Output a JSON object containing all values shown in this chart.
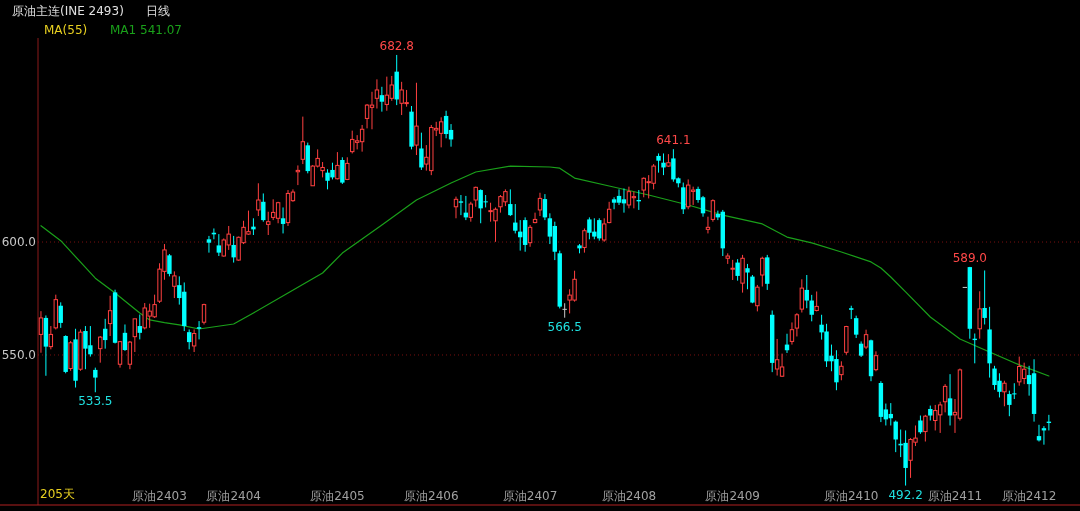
{
  "chart_data": {
    "type": "candlestick",
    "title": "原油主连(INE 2493)",
    "subtitle": "日线",
    "legend_title": "MA(55)",
    "legend": "top left",
    "grid": "y",
    "ylim": [
      483.6,
      690.3
    ],
    "categories": [
      null,
      null,
      null,
      null,
      null,
      null,
      null,
      null,
      null,
      null,
      null,
      null,
      null,
      null,
      null,
      null,
      null,
      null,
      null,
      null,
      null,
      null,
      null,
      null,
      "原油2403",
      null,
      null,
      null,
      null,
      null,
      null,
      null,
      null,
      null,
      null,
      null,
      null,
      null,
      null,
      "原油2404",
      null,
      null,
      null,
      null,
      null,
      null,
      null,
      null,
      null,
      null,
      null,
      null,
      null,
      null,
      null,
      null,
      null,
      null,
      null,
      null,
      "原油2405",
      null,
      null,
      null,
      null,
      null,
      null,
      null,
      null,
      null,
      null,
      null,
      null,
      null,
      null,
      null,
      null,
      null,
      null,
      "原油2406",
      null,
      null,
      null,
      null,
      null,
      null,
      null,
      null,
      null,
      null,
      null,
      null,
      null,
      null,
      null,
      null,
      null,
      null,
      null,
      "原油2407",
      null,
      null,
      null,
      null,
      null,
      null,
      null,
      null,
      null,
      null,
      null,
      null,
      null,
      null,
      null,
      null,
      null,
      null,
      null,
      "原油2408",
      null,
      null,
      null,
      null,
      null,
      null,
      null,
      null,
      null,
      null,
      null,
      null,
      null,
      null,
      null,
      null,
      null,
      null,
      null,
      null,
      "原油2409",
      null,
      null,
      null,
      null,
      null,
      null,
      null,
      null,
      null,
      null,
      null,
      null,
      null,
      null,
      null,
      null,
      null,
      null,
      null,
      null,
      null,
      null,
      null,
      "原油2410",
      null,
      null,
      null,
      null,
      null,
      null,
      null,
      null,
      null,
      null,
      null,
      null,
      null,
      null,
      null,
      null,
      null,
      null,
      null,
      null,
      "原油2411",
      null,
      null,
      null,
      null,
      null,
      null,
      null,
      null,
      null,
      null,
      null,
      null,
      null,
      null,
      "原油2412",
      null,
      null,
      null,
      null
    ],
    "yticks": [
      {
        "value": 550,
        "label": "550.0"
      },
      {
        "value": 600,
        "label": "600.0"
      }
    ],
    "annotations": [
      "205天",
      {
        "text": "533.5",
        "y": 533.5
      },
      {
        "text": "682.8",
        "y": 682.8
      },
      {
        "text": "566.5",
        "y": 566.5
      },
      {
        "text": "641.1",
        "y": 641.1
      },
      {
        "text": "492.2",
        "y": 492.2
      },
      {
        "text": "589.0",
        "y": 589.0
      }
    ],
    "ohlc": [
      [
        559.1,
        569.4,
        551.0,
        566.4
      ],
      [
        566.4,
        567.5,
        540.8,
        553.7
      ],
      [
        553.7,
        562.8,
        552.5,
        559.1
      ],
      [
        562.0,
        576.7,
        561.3,
        574.5
      ],
      [
        571.8,
        573.3,
        562.0,
        564.2
      ],
      [
        558.4,
        558.7,
        541.9,
        542.5
      ],
      [
        544.0,
        556.2,
        543.0,
        555.4
      ],
      [
        556.9,
        561.6,
        535.6,
        538.6
      ],
      [
        543.7,
        561.3,
        543.0,
        560.1
      ],
      [
        560.6,
        562.8,
        543.7,
        552.8
      ],
      [
        554.3,
        562.8,
        549.3,
        550.3
      ],
      [
        543.4,
        544.4,
        533.5,
        540.0
      ],
      [
        552.8,
        558.4,
        546.6,
        557.9
      ],
      [
        561.6,
        566.0,
        552.8,
        556.6
      ],
      [
        563.9,
        576.2,
        558.4,
        569.6
      ],
      [
        577.7,
        578.9,
        555.1,
        555.4
      ],
      [
        545.9,
        556.2,
        544.4,
        555.9
      ],
      [
        559.8,
        563.5,
        551.8,
        552.2
      ],
      [
        545.9,
        556.2,
        543.7,
        555.7
      ],
      [
        558.1,
        566.0,
        551.3,
        566.0
      ],
      [
        562.8,
        567.9,
        556.9,
        559.8
      ],
      [
        562.0,
        573.0,
        561.3,
        570.8
      ],
      [
        567.2,
        572.7,
        562.0,
        569.4
      ],
      [
        566.9,
        576.7,
        566.4,
        572.3
      ],
      [
        573.8,
        590.6,
        573.0,
        588.0
      ],
      [
        587.0,
        599.1,
        583.3,
        596.5
      ],
      [
        594.1,
        594.7,
        584.8,
        585.9
      ],
      [
        580.4,
        587.0,
        575.2,
        585.0
      ],
      [
        580.9,
        584.8,
        572.3,
        575.2
      ],
      [
        578.0,
        582.1,
        560.6,
        562.8
      ],
      [
        560.1,
        561.3,
        552.5,
        555.7
      ],
      [
        554.0,
        561.3,
        551.3,
        559.5
      ],
      [
        562.3,
        565.0,
        556.9,
        561.6
      ],
      [
        564.5,
        572.7,
        563.5,
        572.3
      ],
      [
        601.2,
        602.7,
        595.3,
        599.7
      ],
      [
        604.1,
        606.0,
        601.2,
        603.4
      ],
      [
        598.5,
        603.5,
        593.8,
        595.3
      ],
      [
        593.8,
        601.6,
        593.5,
        600.9
      ],
      [
        598.7,
        607.1,
        596.5,
        603.5
      ],
      [
        598.7,
        602.7,
        590.9,
        593.2
      ],
      [
        592.0,
        602.4,
        591.7,
        602.1
      ],
      [
        599.7,
        609.4,
        599.1,
        606.5
      ],
      [
        603.5,
        613.9,
        603.2,
        604.6
      ],
      [
        606.8,
        610.5,
        603.1,
        605.6
      ],
      [
        614.2,
        626.0,
        611.5,
        618.6
      ],
      [
        617.8,
        621.5,
        609.0,
        609.7
      ],
      [
        607.8,
        613.4,
        603.1,
        609.0
      ],
      [
        610.9,
        618.9,
        609.7,
        613.1
      ],
      [
        610.5,
        617.8,
        608.3,
        617.4
      ],
      [
        610.5,
        615.3,
        603.8,
        608.0
      ],
      [
        608.6,
        623.0,
        607.1,
        621.5
      ],
      [
        618.3,
        623.3,
        617.8,
        622.1
      ],
      [
        631.1,
        633.9,
        625.2,
        631.7
      ],
      [
        636.6,
        655.5,
        634.5,
        644.4
      ],
      [
        642.8,
        644.0,
        630.4,
        631.4
      ],
      [
        624.9,
        634.1,
        624.8,
        633.6
      ],
      [
        633.6,
        641.0,
        633.0,
        637.0
      ],
      [
        631.6,
        635.4,
        628.6,
        633.0
      ],
      [
        630.7,
        632.2,
        623.3,
        627.1
      ],
      [
        631.9,
        635.1,
        627.7,
        628.6
      ],
      [
        628.0,
        639.8,
        627.7,
        633.9
      ],
      [
        636.3,
        637.5,
        625.7,
        626.3
      ],
      [
        627.7,
        637.5,
        627.4,
        634.8
      ],
      [
        640.0,
        649.3,
        639.2,
        645.4
      ],
      [
        644.1,
        647.3,
        641.0,
        644.8
      ],
      [
        644.4,
        651.8,
        640.0,
        649.9
      ],
      [
        654.7,
        661.1,
        650.3,
        660.6
      ],
      [
        659.6,
        666.5,
        649.9,
        660.6
      ],
      [
        663.6,
        672.0,
        659.1,
        667.3
      ],
      [
        665.0,
        668.7,
        657.7,
        662.1
      ],
      [
        660.9,
        673.2,
        658.1,
        665.0
      ],
      [
        663.6,
        673.5,
        662.5,
        669.5
      ],
      [
        675.4,
        682.8,
        660.6,
        663.1
      ],
      [
        661.4,
        670.9,
        656.2,
        667.3
      ],
      [
        661.4,
        667.3,
        659.9,
        661.7
      ],
      [
        657.7,
        660.2,
        641.0,
        642.2
      ],
      [
        642.9,
        670.5,
        638.5,
        651.3
      ],
      [
        641.4,
        648.4,
        631.9,
        633.0
      ],
      [
        634.5,
        642.9,
        631.6,
        637.5
      ],
      [
        631.6,
        651.8,
        629.6,
        650.7
      ],
      [
        649.6,
        653.2,
        646.9,
        650.3
      ],
      [
        648.1,
        655.2,
        641.9,
        653.2
      ],
      [
        655.8,
        658.1,
        645.9,
        647.8
      ],
      [
        649.6,
        652.2,
        642.2,
        645.4
      ],
      [
        615.6,
        620.1,
        610.5,
        618.9
      ],
      [
        618.0,
        620.8,
        611.9,
        617.4
      ],
      [
        613.0,
        620.4,
        609.7,
        610.9
      ],
      [
        610.9,
        617.8,
        609.0,
        616.8
      ],
      [
        618.6,
        624.5,
        615.6,
        624.2
      ],
      [
        623.0,
        623.3,
        608.3,
        614.9
      ],
      [
        618.0,
        620.8,
        615.3,
        617.6
      ],
      [
        613.6,
        617.4,
        609.0,
        613.9
      ],
      [
        609.4,
        615.3,
        600.1,
        614.5
      ],
      [
        615.6,
        620.8,
        613.0,
        620.1
      ],
      [
        617.8,
        623.3,
        615.9,
        622.3
      ],
      [
        616.8,
        623.3,
        611.5,
        611.9
      ],
      [
        608.6,
        616.8,
        603.8,
        605.0
      ],
      [
        604.6,
        609.7,
        596.2,
        602.1
      ],
      [
        609.7,
        610.9,
        595.7,
        598.7
      ],
      [
        599.7,
        607.5,
        597.9,
        606.5
      ],
      [
        608.6,
        613.0,
        608.3,
        610.0
      ],
      [
        614.2,
        621.8,
        611.5,
        619.3
      ],
      [
        619.0,
        621.2,
        609.7,
        610.9
      ],
      [
        610.5,
        612.7,
        599.1,
        602.4
      ],
      [
        607.1,
        609.0,
        592.0,
        595.7
      ],
      [
        595.0,
        596.2,
        570.6,
        571.4
      ],
      [
        570.2,
        572.9,
        566.5,
        570.2
      ],
      [
        574.3,
        579.1,
        568.4,
        576.5
      ],
      [
        574.3,
        587.3,
        573.6,
        583.5
      ],
      [
        598.5,
        599.1,
        595.0,
        597.2
      ],
      [
        597.6,
        606.0,
        595.3,
        605.0
      ],
      [
        610.0,
        610.9,
        601.2,
        604.1
      ],
      [
        604.6,
        610.5,
        601.2,
        602.4
      ],
      [
        609.7,
        610.5,
        600.6,
        601.6
      ],
      [
        600.9,
        610.5,
        600.1,
        608.0
      ],
      [
        608.6,
        617.8,
        608.3,
        614.5
      ],
      [
        618.9,
        619.8,
        614.5,
        617.4
      ],
      [
        620.4,
        623.3,
        616.4,
        617.4
      ],
      [
        618.9,
        623.7,
        613.0,
        617.1
      ],
      [
        616.4,
        624.5,
        614.9,
        622.3
      ],
      [
        619.6,
        622.3,
        614.9,
        620.1
      ],
      [
        618.6,
        623.0,
        614.2,
        618.0
      ],
      [
        623.0,
        628.6,
        619.8,
        628.2
      ],
      [
        626.3,
        629.6,
        619.3,
        626.7
      ],
      [
        626.0,
        634.5,
        623.3,
        633.6
      ],
      [
        638.1,
        639.2,
        630.7,
        636.0
      ],
      [
        635.1,
        639.2,
        629.6,
        633.0
      ],
      [
        633.6,
        638.9,
        633.3,
        635.1
      ],
      [
        637.0,
        641.1,
        626.7,
        627.7
      ],
      [
        628.2,
        628.6,
        624.2,
        626.0
      ],
      [
        624.2,
        626.3,
        612.4,
        614.5
      ],
      [
        615.6,
        627.7,
        614.5,
        625.2
      ],
      [
        622.4,
        624.5,
        616.4,
        623.0
      ],
      [
        623.5,
        624.5,
        617.4,
        618.6
      ],
      [
        619.8,
        620.4,
        611.2,
        612.7
      ],
      [
        605.6,
        611.2,
        603.8,
        606.5
      ],
      [
        610.0,
        618.9,
        609.0,
        618.3
      ],
      [
        612.4,
        613.9,
        609.7,
        610.9
      ],
      [
        613.4,
        614.2,
        593.8,
        597.2
      ],
      [
        592.8,
        595.0,
        590.3,
        593.8
      ],
      [
        588.1,
        592.1,
        583.2,
        588.4
      ],
      [
        590.9,
        592.4,
        582.9,
        585.0
      ],
      [
        581.8,
        594.3,
        577.6,
        592.8
      ],
      [
        588.4,
        590.3,
        579.1,
        586.5
      ],
      [
        584.7,
        585.4,
        572.9,
        573.2
      ],
      [
        571.8,
        581.0,
        569.3,
        580.0
      ],
      [
        585.4,
        593.5,
        580.3,
        592.8
      ],
      [
        593.2,
        594.3,
        578.8,
        581.5
      ],
      [
        567.8,
        569.7,
        542.4,
        546.5
      ],
      [
        543.8,
        557.1,
        540.9,
        547.9
      ],
      [
        540.6,
        550.6,
        540.3,
        544.7
      ],
      [
        554.6,
        559.4,
        550.9,
        552.1
      ],
      [
        556.0,
        564.4,
        554.6,
        561.2
      ],
      [
        561.9,
        568.5,
        558.2,
        567.8
      ],
      [
        570.3,
        583.5,
        568.8,
        579.6
      ],
      [
        578.8,
        585.4,
        570.7,
        574.1
      ],
      [
        574.1,
        576.6,
        564.9,
        567.8
      ],
      [
        569.7,
        578.1,
        569.3,
        571.5
      ],
      [
        563.4,
        567.8,
        556.8,
        560.0
      ],
      [
        560.4,
        563.8,
        544.7,
        547.2
      ],
      [
        549.7,
        554.6,
        542.8,
        547.2
      ],
      [
        548.2,
        552.1,
        534.4,
        537.9
      ],
      [
        541.3,
        547.2,
        538.8,
        545.0
      ],
      [
        551.2,
        562.9,
        550.1,
        562.6
      ],
      [
        570.7,
        571.8,
        565.9,
        570.0
      ],
      [
        566.3,
        567.4,
        557.5,
        559.0
      ],
      [
        555.0,
        556.0,
        549.1,
        549.7
      ],
      [
        553.5,
        561.2,
        552.6,
        559.0
      ],
      [
        556.5,
        556.8,
        538.4,
        540.6
      ],
      [
        543.5,
        551.6,
        542.8,
        549.7
      ],
      [
        537.6,
        538.4,
        520.3,
        522.6
      ],
      [
        525.9,
        528.5,
        518.8,
        521.5
      ],
      [
        523.9,
        528.7,
        518.8,
        522.0
      ],
      [
        520.5,
        521.0,
        507.0,
        512.6
      ],
      [
        510.7,
        517.0,
        504.8,
        510.0
      ],
      [
        511.1,
        516.6,
        492.2,
        500.0
      ],
      [
        503.4,
        513.2,
        495.6,
        512.6
      ],
      [
        511.4,
        518.8,
        509.7,
        513.2
      ],
      [
        521.0,
        523.2,
        515.1,
        515.8
      ],
      [
        516.1,
        523.5,
        511.7,
        522.9
      ],
      [
        526.1,
        527.6,
        521.0,
        523.2
      ],
      [
        521.0,
        527.9,
        516.6,
        525.4
      ],
      [
        523.5,
        529.3,
        515.5,
        527.9
      ],
      [
        529.3,
        537.1,
        524.6,
        536.1
      ],
      [
        530.8,
        541.5,
        518.8,
        523.2
      ],
      [
        523.5,
        530.5,
        515.5,
        524.6
      ],
      [
        522.0,
        544.0,
        521.0,
        543.4
      ],
      [
        579.9,
        579.9,
        579.9,
        579.9
      ],
      [
        588.9,
        589.0,
        557.2,
        561.6
      ],
      [
        557.2,
        559.5,
        546.3,
        556.6
      ],
      [
        561.6,
        578.2,
        557.2,
        570.4
      ],
      [
        570.8,
        587.4,
        563.5,
        566.4
      ],
      [
        561.3,
        571.3,
        540.0,
        546.3
      ],
      [
        544.0,
        545.2,
        534.6,
        536.7
      ],
      [
        538.6,
        541.9,
        531.2,
        533.7
      ],
      [
        533.7,
        538.6,
        527.3,
        537.5
      ],
      [
        532.7,
        534.2,
        522.9,
        527.9
      ],
      [
        533.0,
        537.5,
        530.5,
        532.6
      ],
      [
        538.1,
        549.3,
        536.4,
        544.9
      ],
      [
        539.6,
        546.6,
        537.1,
        543.7
      ],
      [
        541.1,
        545.2,
        532.0,
        537.1
      ],
      [
        541.9,
        548.1,
        520.5,
        523.9
      ],
      [
        514.1,
        519.1,
        511.7,
        512.2
      ],
      [
        517.6,
        518.5,
        510.3,
        516.6
      ],
      [
        520.5,
        523.5,
        516.6,
        519.9
      ]
    ],
    "colors": [
      "#ff4040",
      "#00ffff",
      "#ff4040",
      "#ff4040",
      "#00ffff",
      "#00ffff",
      "#ff4040",
      "#00ffff",
      "#ff4040",
      "#00ffff",
      "#00ffff",
      "#00ffff",
      "#ff4040",
      "#00ffff",
      "#ff4040",
      "#00ffff",
      "#ff4040",
      "#00ffff",
      "#ff4040",
      "#ff4040",
      "#00ffff",
      "#ff4040",
      "#ff4040",
      "#ff4040",
      "#ff4040",
      "#ff4040",
      "#00ffff",
      "#ff4040",
      "#00ffff",
      "#00ffff",
      "#00ffff",
      "#ff4040",
      "#00ffff",
      "#ff4040",
      "#00ffff",
      "#00ffff",
      "#00ffff",
      "#ff4040",
      "#ff4040",
      "#00ffff",
      "#ff4040",
      "#ff4040",
      "#ff4040",
      "#00ffff",
      "#ff4040",
      "#00ffff",
      "#ff4040",
      "#ff4040",
      "#ff4040",
      "#00ffff",
      "#ff4040",
      "#ff4040",
      "#ff4040",
      "#ff4040",
      "#00ffff",
      "#ff4040",
      "#ff4040",
      "#ff4040",
      "#00ffff",
      "#00ffff",
      "#ff4040",
      "#00ffff",
      "#ff4040",
      "#ff4040",
      "#ff4040",
      "#ff4040",
      "#ff4040",
      "#ff4040",
      "#ff4040",
      "#00ffff",
      "#ff4040",
      "#ff4040",
      "#00ffff",
      "#ff4040",
      "#ff4040",
      "#00ffff",
      "#ff4040",
      "#00ffff",
      "#ff4040",
      "#ff4040",
      "#ff4040",
      "#ff4040",
      "#00ffff",
      "#00ffff",
      "#ff4040",
      "#00ffff",
      "#00ffff",
      "#ff4040",
      "#ff4040",
      "#00ffff",
      "#00ffff",
      "#ff4040",
      "#ff4040",
      "#ff4040",
      "#ff4040",
      "#00ffff",
      "#00ffff",
      "#00ffff",
      "#00ffff",
      "#ff4040",
      "#ff4040",
      "#ff4040",
      "#00ffff",
      "#00ffff",
      "#00ffff",
      "#00ffff",
      "#c8c8c8",
      "#ff4040",
      "#ff4040",
      "#00ffff",
      "#ff4040",
      "#00ffff",
      "#00ffff",
      "#00ffff",
      "#ff4040",
      "#ff4040",
      "#00ffff",
      "#00ffff",
      "#00ffff",
      "#ff4040",
      "#ff4040",
      "#00ffff",
      "#ff4040",
      "#ff4040",
      "#ff4040",
      "#00ffff",
      "#00ffff",
      "#ff4040",
      "#00ffff",
      "#00ffff",
      "#00ffff",
      "#ff4040",
      "#ff4040",
      "#00ffff",
      "#00ffff",
      "#ff4040",
      "#ff4040",
      "#00ffff",
      "#00ffff",
      "#ff4040",
      "#ff4040",
      "#00ffff",
      "#ff4040",
      "#00ffff",
      "#00ffff",
      "#ff4040",
      "#ff4040",
      "#00ffff",
      "#00ffff",
      "#ff4040",
      "#ff4040",
      "#00ffff",
      "#ff4040",
      "#ff4040",
      "#ff4040",
      "#00ffff",
      "#00ffff",
      "#ff4040",
      "#00ffff",
      "#00ffff",
      "#00ffff",
      "#00ffff",
      "#ff4040",
      "#ff4040",
      "#00ffff",
      "#00ffff",
      "#00ffff",
      "#ff4040",
      "#00ffff",
      "#ff4040",
      "#00ffff",
      "#00ffff",
      "#00ffff",
      "#00ffff",
      "#00ffff",
      "#00ffff",
      "#ff4040",
      "#ff4040",
      "#00ffff",
      "#ff4040",
      "#00ffff",
      "#ff4040",
      "#ff4040",
      "#ff4040",
      "#00ffff",
      "#ff4040",
      "#ff4040",
      "#c8c8c8",
      "#00ffff",
      "#00ffff",
      "#ff4040",
      "#00ffff",
      "#00ffff",
      "#00ffff",
      "#00ffff",
      "#ff4040",
      "#00ffff",
      "#00ffff",
      "#ff4040",
      "#ff4040",
      "#00ffff",
      "#00ffff",
      "#00ffff",
      "#00ffff",
      "#00ffff"
    ],
    "series": [
      {
        "type": "line",
        "name": "MA1 541.07",
        "color": "#1aa01a",
        "values": [
          607.2,
          null,
          null,
          null,
          600.6,
          null,
          null,
          null,
          null,
          null,
          null,
          584.0,
          null,
          null,
          null,
          577.4,
          null,
          null,
          null,
          null,
          568.6,
          null,
          565.5,
          null,
          null,
          564.3,
          null,
          null,
          563.3,
          null,
          null,
          null,
          561.5,
          null,
          null,
          null,
          null,
          null,
          null,
          563.7,
          null,
          null,
          null,
          568.6,
          null,
          null,
          null,
          null,
          null,
          null,
          577.4,
          null,
          null,
          null,
          null,
          null,
          null,
          586.3,
          null,
          null,
          null,
          595.1,
          null,
          null,
          null,
          null,
          null,
          null,
          null,
          607.5,
          null,
          null,
          null,
          null,
          null,
          null,
          618.6,
          null,
          null,
          null,
          null,
          null,
          null,
          626.1,
          null,
          null,
          null,
          null,
          631.0,
          null,
          null,
          null,
          null,
          null,
          null,
          633.6,
          null,
          null,
          null,
          null,
          null,
          null,
          null,
          633.2,
          null,
          632.7,
          null,
          null,
          628.3,
          null,
          null,
          null,
          null,
          null,
          null,
          624.8,
          null,
          null,
          null,
          null,
          null,
          null,
          null,
          620.8,
          null,
          null,
          null,
          null,
          null,
          null,
          null,
          616.4,
          null,
          null,
          null,
          null,
          null,
          null,
          611.9,
          null,
          null,
          null,
          null,
          null,
          null,
          null,
          608.0,
          null,
          null,
          null,
          null,
          602.2,
          null,
          null,
          null,
          null,
          599.6,
          null,
          null,
          null,
          null,
          null,
          595.6,
          null,
          null,
          null,
          null,
          null,
          591.2,
          null,
          588.5,
          null,
          584.5,
          null,
          null,
          577.9,
          null,
          null,
          null,
          null,
          566.8,
          null,
          null,
          null,
          null,
          null,
          557.1,
          null,
          null,
          null,
          null,
          null,
          551.3,
          null,
          null,
          null,
          null,
          null,
          545.6,
          null,
          null,
          null,
          null,
          null,
          540.7
        ]
      }
    ]
  }
}
